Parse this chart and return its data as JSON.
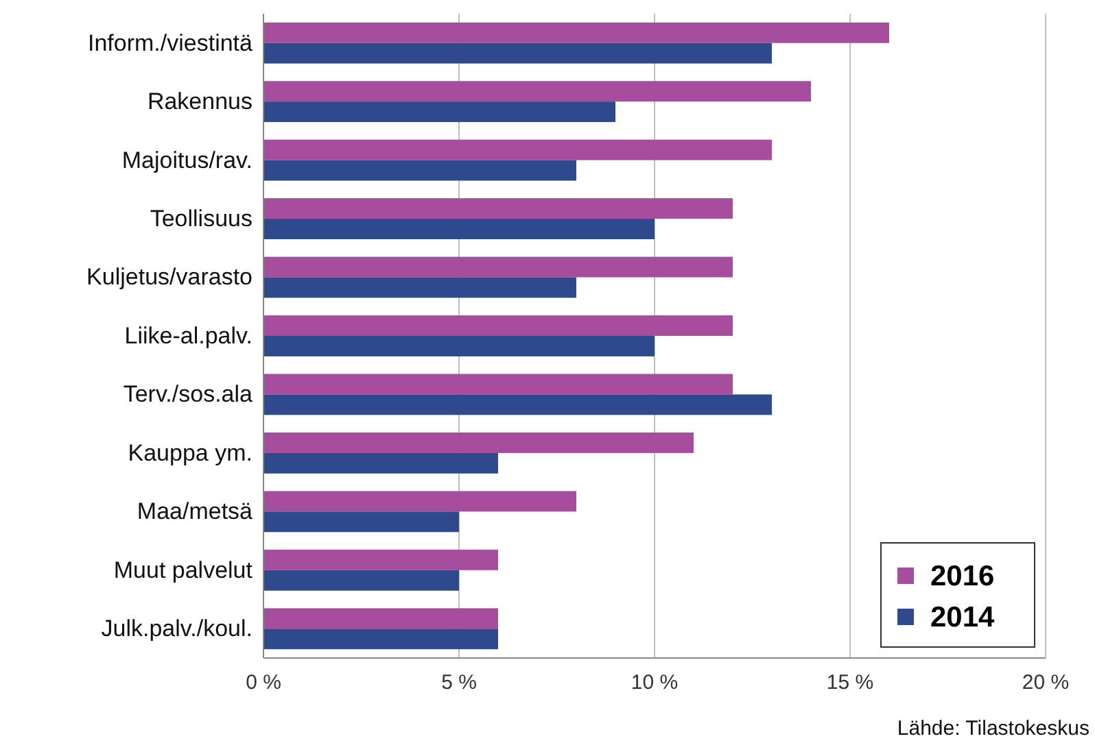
{
  "chart_data": {
    "type": "bar",
    "orientation": "horizontal",
    "categories": [
      "Inform./viestintä",
      "Rakennus",
      "Majoitus/rav.",
      "Teollisuus",
      "Kuljetus/varasto",
      "Liike-al.palv.",
      "Terv./sos.ala",
      "Kauppa ym.",
      "Maa/metsä",
      "Muut palvelut",
      "Julk.palv./koul."
    ],
    "series": [
      {
        "name": "2016",
        "color": "#a64d9e",
        "values": [
          16,
          14,
          13,
          12,
          12,
          12,
          12,
          11,
          8,
          6,
          6
        ]
      },
      {
        "name": "2014",
        "color": "#2e4a8c",
        "values": [
          13,
          9,
          8,
          10,
          8,
          10,
          13,
          6,
          5,
          5,
          6
        ]
      }
    ],
    "xlim": [
      0,
      20
    ],
    "xticks": [
      {
        "value": 0,
        "label": "0 %"
      },
      {
        "value": 5,
        "label": "5 %"
      },
      {
        "value": 10,
        "label": "10 %"
      },
      {
        "value": 15,
        "label": "15 %"
      },
      {
        "value": 20,
        "label": "20 %"
      }
    ],
    "grid": "x",
    "legend": "bottom right",
    "annotations": [
      "Lähde: Tilastokeskus"
    ]
  }
}
